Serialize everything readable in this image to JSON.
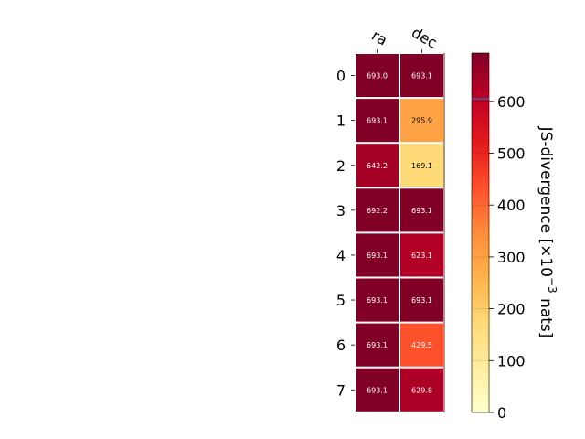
{
  "chart_data": {
    "type": "heatmap",
    "title": "",
    "columns": [
      "ra",
      "dec"
    ],
    "rows": [
      "0",
      "1",
      "2",
      "3",
      "4",
      "5",
      "6",
      "7"
    ],
    "values": [
      [
        693.0,
        693.1
      ],
      [
        693.1,
        295.9
      ],
      [
        642.2,
        169.1
      ],
      [
        692.2,
        693.1
      ],
      [
        693.1,
        623.1
      ],
      [
        693.1,
        693.1
      ],
      [
        693.1,
        429.5
      ],
      [
        693.1,
        629.8
      ]
    ],
    "cell_labels": [
      [
        "693.0",
        "693.1"
      ],
      [
        "693.1",
        "295.9"
      ],
      [
        "642.2",
        "169.1"
      ],
      [
        "692.2",
        "693.1"
      ],
      [
        "693.1",
        "623.1"
      ],
      [
        "693.1",
        "693.1"
      ],
      [
        "693.1",
        "429.5"
      ],
      [
        "693.1",
        "629.8"
      ]
    ],
    "colormap": "YlOrRd",
    "vmin": 0,
    "vmax": 693.1,
    "colorbar": {
      "label": "JS-divergence [×10",
      "label_exponent": "−3",
      "label_unit": " nats]",
      "ticks": [
        0,
        100,
        200,
        300,
        400,
        500,
        600
      ],
      "tick_labels": [
        "0",
        "100",
        "200",
        "300",
        "400",
        "500",
        "600"
      ],
      "marker_value": 605,
      "marker_color": "#3b5fa6"
    }
  }
}
